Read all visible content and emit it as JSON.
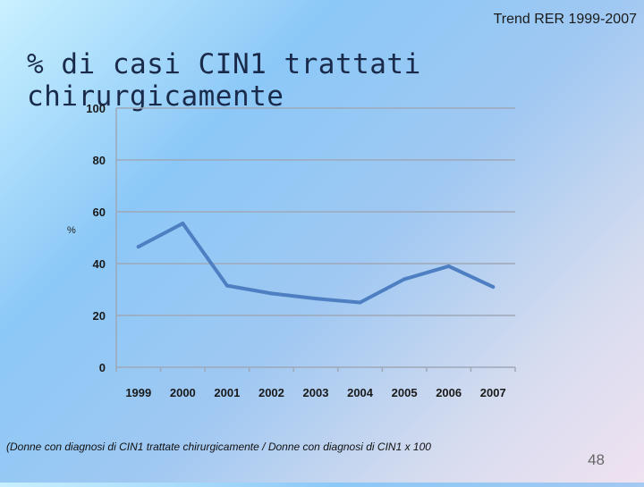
{
  "header": {
    "trend_label": "Trend RER 1999-2007",
    "title": "% di casi CIN1 trattati chirurgicamente"
  },
  "chart_data": {
    "type": "line",
    "x": [
      "1999",
      "2000",
      "2001",
      "2002",
      "2003",
      "2004",
      "2005",
      "2006",
      "2007"
    ],
    "series": [
      {
        "values": [
          46.5,
          55.5,
          31.5,
          28.5,
          26.5,
          25,
          34,
          39,
          31
        ]
      }
    ],
    "ylabel": "%",
    "ylim": [
      0,
      100
    ],
    "yticks": [
      0,
      20,
      40,
      60,
      80,
      100
    ],
    "grid": true,
    "line_color": "#4d7fc2",
    "grid_color": "#9ea8b8"
  },
  "footnote": "(Donne con diagnosi di CIN1 trattate chirurgicamente / Donne con diagnosi di CIN1 x 100",
  "page_number": "48"
}
